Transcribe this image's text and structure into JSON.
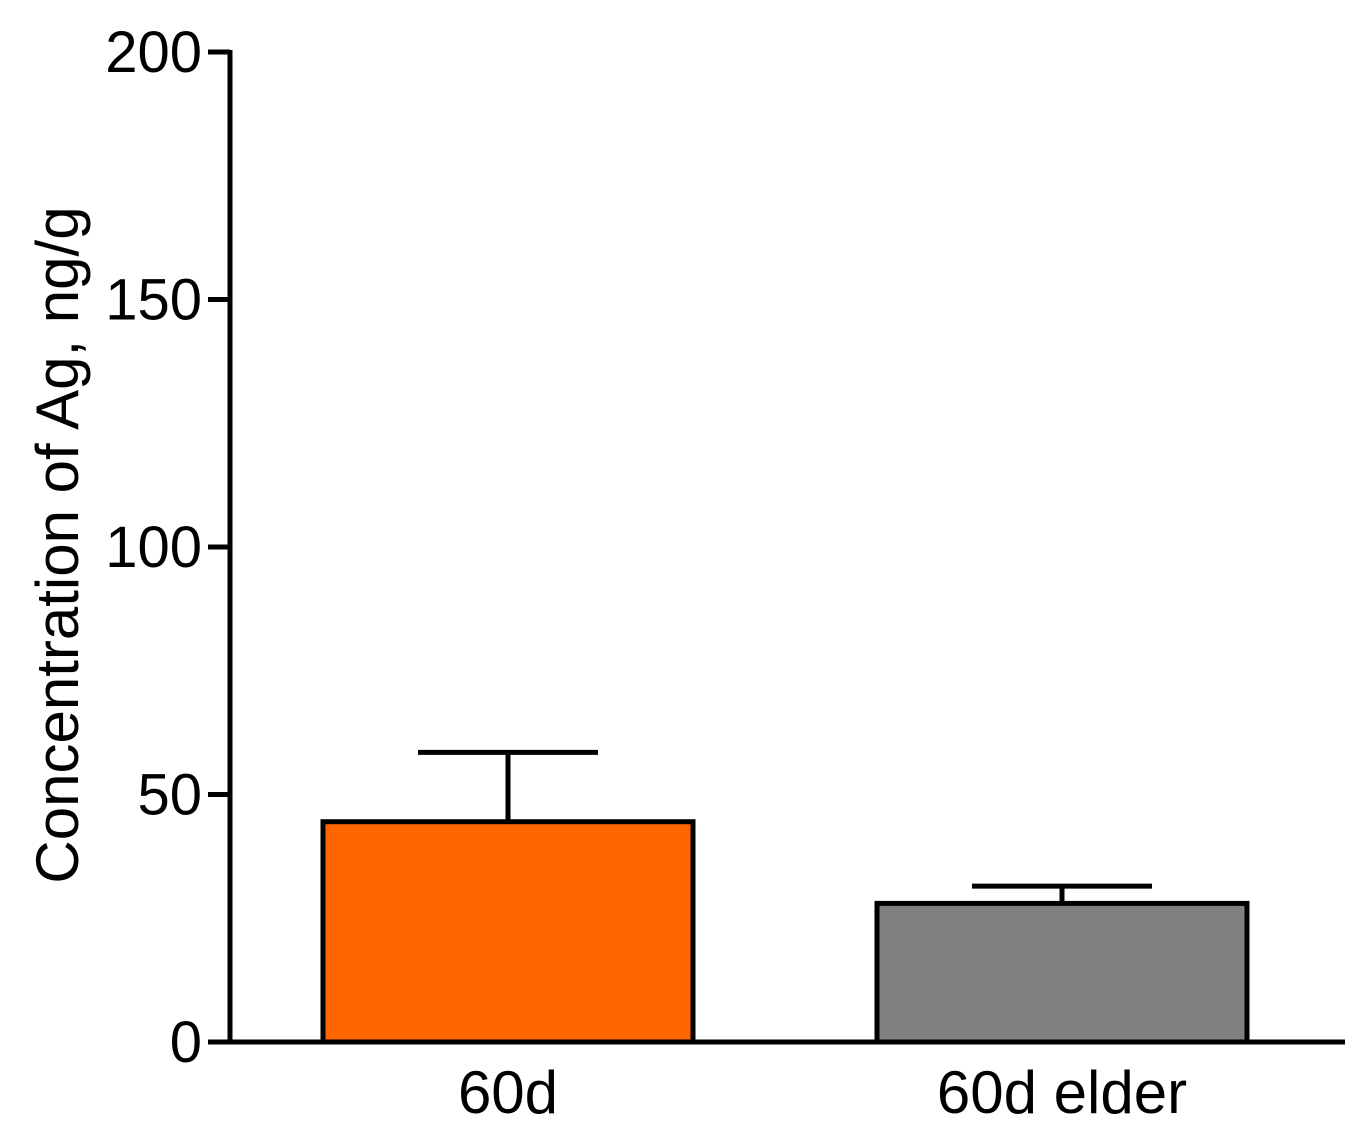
{
  "chart_data": {
    "type": "bar",
    "title": "",
    "xlabel": "",
    "ylabel": "Concentration of Ag, ng/g",
    "categories": [
      "60d",
      "60d elder"
    ],
    "values": [
      44.5,
      28
    ],
    "error_upper": [
      58.5,
      31.5
    ],
    "colors": [
      "#FF6600",
      "#808080"
    ],
    "ylim": [
      0,
      200
    ],
    "yticks": [
      0,
      50,
      100,
      150,
      200
    ],
    "grid": false,
    "legend": "none"
  }
}
